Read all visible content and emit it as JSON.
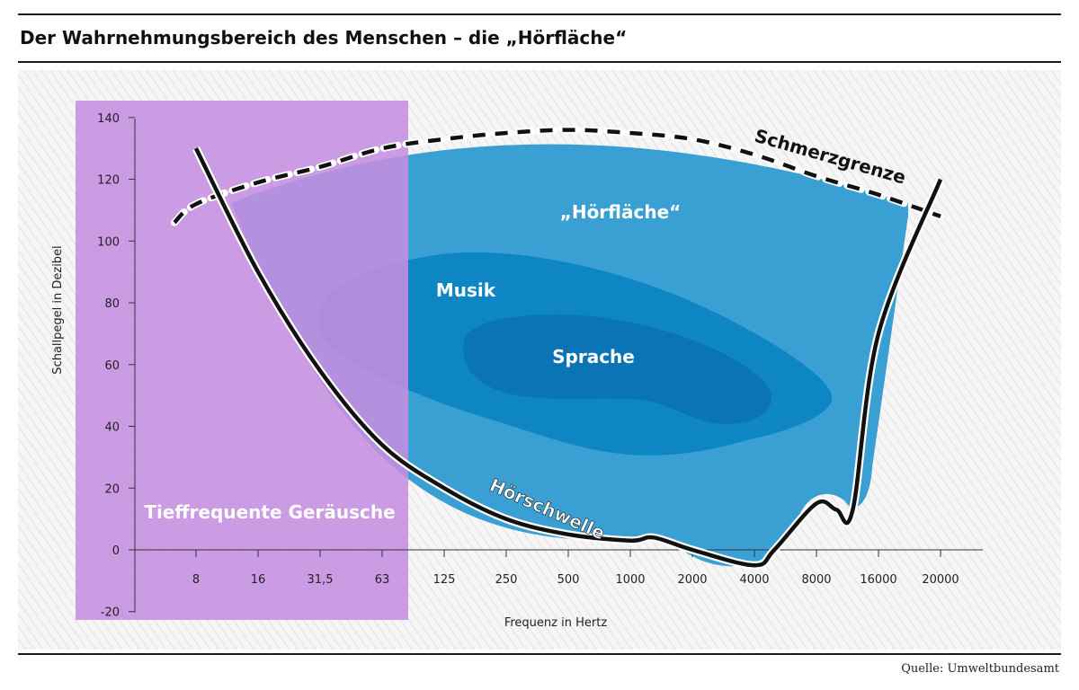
{
  "title": "Der Wahrnehmungsbereich des Menschen – die „Hörfläche“",
  "source": "Quelle: Umweltbundesamt",
  "colors": {
    "low_freq_band": "#c58ee0",
    "hoerflaeche": "#3aa0d4",
    "musik": "#0e86c4",
    "sprache": "#0b74b7",
    "curve": "#111111",
    "background": "#f3f3f3",
    "accent_text": "#ffffff"
  },
  "chart_data": {
    "type": "area",
    "xlabel": "Frequenz in Hertz",
    "ylabel": "Schallpegel in Dezibel",
    "x_categories": [
      "8",
      "16",
      "31,5",
      "63",
      "125",
      "250",
      "500",
      "1000",
      "2000",
      "4000",
      "8000",
      "16000",
      "20000"
    ],
    "yticks": [
      "140",
      "120",
      "100",
      "80",
      "60",
      "40",
      "20",
      "0",
      "-20"
    ],
    "ylim": [
      -20,
      140
    ],
    "regions": {
      "low_frequency": {
        "label": "Tieffrequente Geräusche",
        "x_from": "below 8",
        "x_to": "approx. 90"
      },
      "hoerflaeche": {
        "label": "„Hörfläche“"
      },
      "musik": {
        "label": "Musik",
        "x_range": [
          "approx. 31.5",
          "approx. 12000"
        ],
        "y_range": [
          30,
          95
        ]
      },
      "sprache": {
        "label": "Sprache",
        "x_range": [
          "approx. 125",
          "approx. 4000"
        ],
        "y_range": [
          40,
          76
        ]
      }
    },
    "series": [
      {
        "name": "Schmerzgrenze",
        "style": "dashed",
        "x": [
          "6",
          "8",
          "16",
          "31,5",
          "63",
          "125",
          "250",
          "500",
          "1000",
          "2000",
          "4000",
          "8000",
          "16000",
          "20000"
        ],
        "y": [
          106,
          112,
          119,
          124,
          130,
          133,
          135,
          136,
          135,
          133,
          128,
          121,
          115,
          108
        ]
      },
      {
        "name": "Hörschwelle",
        "style": "solid",
        "x": [
          "8",
          "16",
          "31,5",
          "63",
          "125",
          "250",
          "500",
          "1000",
          "1300",
          "2000",
          "4000",
          "5000",
          "8000",
          "10000",
          "12000",
          "16000",
          "20000"
        ],
        "y": [
          130,
          90,
          58,
          34,
          20,
          10,
          5,
          3,
          4,
          0,
          -5,
          0,
          15,
          13,
          13,
          70,
          120
        ]
      }
    ]
  }
}
